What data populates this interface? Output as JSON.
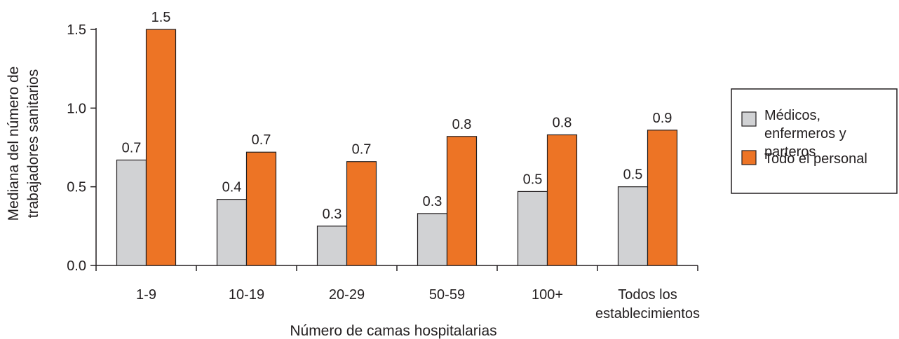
{
  "chart_data": {
    "type": "bar",
    "xlabel": "Número de camas hospitalarias",
    "ylabel_lines": [
      "Mediana del número de",
      "trabajadores sanitarios"
    ],
    "categories": [
      [
        "1-9"
      ],
      [
        "10-19"
      ],
      [
        "20-29"
      ],
      [
        "50-59"
      ],
      [
        "100+"
      ],
      [
        "Todos los",
        "establecimientos"
      ]
    ],
    "series": [
      {
        "name_lines": [
          "Médicos,",
          "enfermeros y",
          "parteros"
        ],
        "color": "#d1d2d4",
        "values": [
          0.67,
          0.42,
          0.25,
          0.33,
          0.47,
          0.5
        ],
        "labels": [
          "0.7",
          "0.4",
          "0.3",
          "0.3",
          "0.5",
          "0.5"
        ]
      },
      {
        "name_lines": [
          "Todo el personal"
        ],
        "color": "#ed7425",
        "values": [
          1.5,
          0.72,
          0.66,
          0.82,
          0.83,
          0.86
        ],
        "labels": [
          "1.5",
          "0.7",
          "0.7",
          "0.8",
          "0.8",
          "0.9"
        ]
      }
    ],
    "ylim": [
      0,
      1.5
    ],
    "yticks": [
      0,
      0.5,
      1.0,
      1.5
    ],
    "ytick_labels": [
      "0.0",
      "0.5",
      "1.0",
      "1.5"
    ],
    "grid": false,
    "legend_position": "right"
  }
}
